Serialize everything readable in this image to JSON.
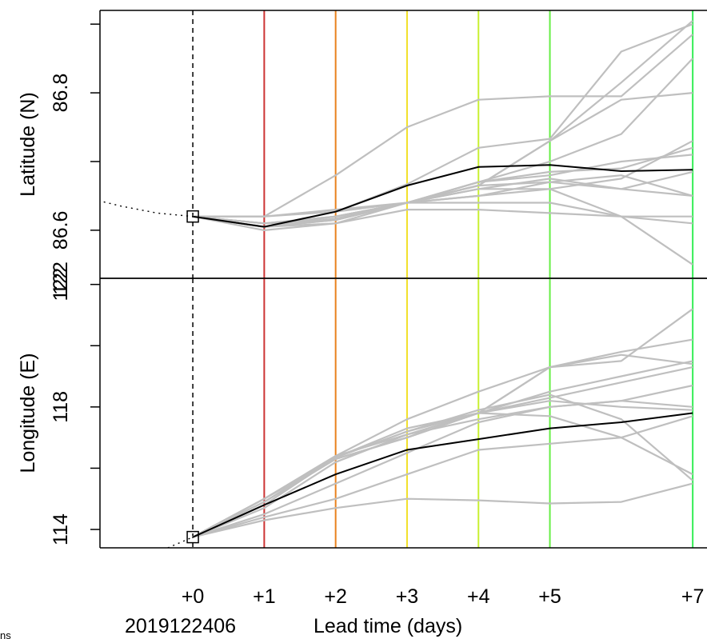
{
  "chart_data": {
    "type": "line",
    "xlabel": "Lead time (days)",
    "init_time_label": "2019122406",
    "footnote": "ns",
    "x_ticks": [
      {
        "value": 0,
        "label": "+0"
      },
      {
        "value": 1,
        "label": "+1"
      },
      {
        "value": 2,
        "label": "+2"
      },
      {
        "value": 3,
        "label": "+3"
      },
      {
        "value": 4,
        "label": "+4"
      },
      {
        "value": 5,
        "label": "+5"
      },
      {
        "value": 7,
        "label": "+7"
      }
    ],
    "xlim": [
      -1.3,
      7.2
    ],
    "lead_lines": [
      {
        "x": 1,
        "color": "#cc3333"
      },
      {
        "x": 2,
        "color": "#e8821e"
      },
      {
        "x": 3,
        "color": "#f2e02a"
      },
      {
        "x": 4,
        "color": "#c8f032"
      },
      {
        "x": 5,
        "color": "#66ee44"
      },
      {
        "x": 7,
        "color": "#33ee55"
      }
    ],
    "colors": {
      "ensemble": "#bfbfbf",
      "control": "#000000",
      "frame": "#000000"
    },
    "panels": [
      {
        "name": "latitude",
        "ylabel": "Latitude (N)",
        "ylim": [
          86.53,
          86.92
        ],
        "y_ticks": [
          {
            "value": 86.6,
            "label": "86.6"
          },
          {
            "value": 86.8,
            "label": "86.8"
          }
        ],
        "y_minor_ticks": [
          86.7,
          86.9
        ],
        "corner_label": "122",
        "x": [
          0,
          1,
          2,
          3,
          4,
          5,
          6,
          7
        ],
        "history": {
          "x": [
            -1.4,
            -1.0,
            -0.5,
            0
          ],
          "y": [
            86.645,
            86.635,
            86.625,
            86.62
          ]
        },
        "initial_point": {
          "x": 0,
          "y": 86.62
        },
        "control": [
          86.62,
          86.605,
          86.627,
          86.665,
          86.692,
          86.695,
          86.686,
          86.688
        ],
        "ensemble": [
          [
            86.62,
            86.62,
            86.68,
            86.75,
            86.79,
            86.795,
            86.795,
            86.885
          ],
          [
            86.62,
            86.605,
            86.627,
            86.667,
            86.72,
            86.733,
            86.86,
            86.9
          ],
          [
            86.62,
            86.62,
            86.627,
            86.64,
            86.665,
            86.73,
            86.815,
            86.905
          ],
          [
            86.62,
            86.61,
            86.615,
            86.64,
            86.67,
            86.7,
            86.74,
            86.85
          ],
          [
            86.62,
            86.605,
            86.615,
            86.64,
            86.67,
            86.685,
            86.69,
            86.72
          ],
          [
            86.62,
            86.6,
            86.61,
            86.64,
            86.65,
            86.66,
            86.675,
            86.73
          ],
          [
            86.62,
            86.62,
            86.63,
            86.64,
            86.665,
            86.67,
            86.66,
            86.685
          ],
          [
            86.62,
            86.605,
            86.61,
            86.63,
            86.63,
            86.625,
            86.62,
            86.62
          ],
          [
            86.62,
            86.605,
            86.615,
            86.64,
            86.64,
            86.64,
            86.62,
            86.61
          ],
          [
            86.62,
            86.61,
            86.62,
            86.64,
            86.66,
            86.675,
            86.66,
            86.65
          ],
          [
            86.62,
            86.605,
            86.617,
            86.64,
            86.66,
            86.66,
            86.62,
            86.55
          ],
          [
            86.62,
            86.61,
            86.615,
            86.64,
            86.65,
            86.67,
            86.68,
            86.65
          ],
          [
            86.62,
            86.605,
            86.62,
            86.64,
            86.665,
            86.73,
            86.79,
            86.8
          ],
          [
            86.62,
            86.61,
            86.62,
            86.64,
            86.67,
            86.68,
            86.7,
            86.71
          ]
        ]
      },
      {
        "name": "longitude",
        "ylabel": "Longitude (E)",
        "ylim": [
          113.4,
          122.2
        ],
        "y_ticks": [
          {
            "value": 114,
            "label": "114"
          },
          {
            "value": 118,
            "label": "118"
          },
          {
            "value": 122,
            "label": "122"
          }
        ],
        "y_minor_ticks": [
          116,
          120
        ],
        "x": [
          0,
          1,
          2,
          3,
          4,
          5,
          6,
          7
        ],
        "history": {
          "x": [
            -0.35,
            -0.2,
            0
          ],
          "y": [
            113.4,
            113.55,
            113.75
          ]
        },
        "initial_point": {
          "x": 0,
          "y": 113.75
        },
        "control": [
          113.75,
          114.8,
          115.8,
          116.6,
          116.95,
          117.3,
          117.5,
          117.8
        ],
        "ensemble": [
          [
            113.75,
            115.0,
            116.4,
            117.6,
            118.5,
            119.3,
            119.8,
            120.2
          ],
          [
            113.75,
            115.0,
            116.35,
            117.2,
            117.8,
            119.3,
            119.7,
            119.4
          ],
          [
            113.75,
            114.9,
            116.3,
            117.0,
            117.8,
            118.3,
            118.8,
            119.3
          ],
          [
            113.75,
            115.0,
            116.3,
            117.0,
            117.8,
            118.2,
            118.0,
            117.9
          ],
          [
            113.75,
            114.5,
            115.5,
            116.5,
            117.5,
            118.0,
            118.2,
            118.7
          ],
          [
            113.75,
            114.3,
            114.7,
            115.0,
            114.95,
            114.85,
            114.9,
            115.5
          ],
          [
            113.75,
            114.4,
            115.0,
            115.8,
            116.6,
            116.8,
            117.0,
            117.7
          ],
          [
            113.75,
            114.8,
            116.35,
            117.3,
            117.8,
            117.7,
            117.0,
            115.8
          ],
          [
            113.75,
            115.0,
            116.4,
            117.1,
            117.6,
            118.0,
            118.2,
            118.0
          ],
          [
            113.75,
            114.9,
            116.3,
            117.0,
            117.8,
            119.3,
            119.5,
            121.2
          ],
          [
            113.75,
            114.7,
            116.2,
            117.1,
            117.8,
            118.5,
            119.0,
            119.5
          ],
          [
            113.75,
            114.9,
            116.35,
            117.2,
            117.9,
            118.4,
            117.6,
            115.6
          ]
        ]
      }
    ]
  }
}
